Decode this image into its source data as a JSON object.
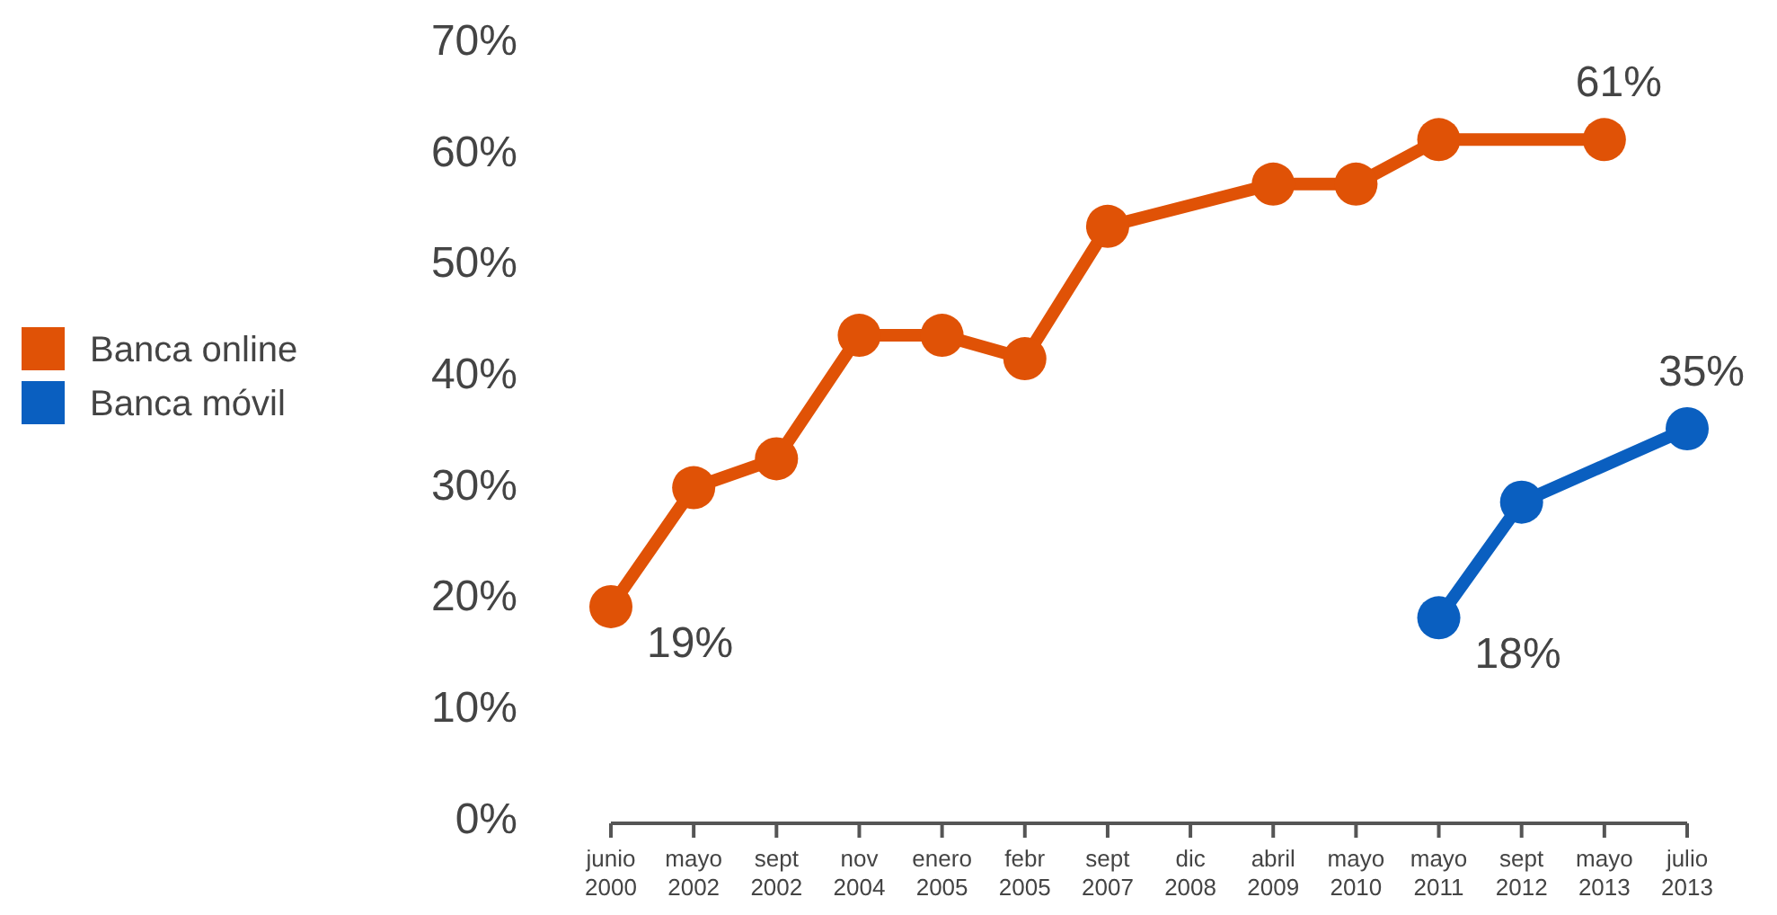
{
  "chart_data": {
    "type": "line",
    "categories": [
      "junio\n2000",
      "mayo\n2002",
      "sept\n2002",
      "nov\n2004",
      "enero\n2005",
      "febr\n2005",
      "sept\n2007",
      "dic\n2008",
      "abril\n2009",
      "mayo\n2010",
      "mayo\n2011",
      "sept\n2012",
      "mayo\n2013",
      "julio\n2013"
    ],
    "series": [
      {
        "name": "Banca online",
        "color": "#e05206",
        "values": [
          19,
          29.7,
          32.3,
          43.4,
          43.4,
          41.3,
          53.2,
          null,
          57,
          57,
          61,
          null,
          61,
          null
        ],
        "value_labels": [
          "19%",
          null,
          null,
          null,
          null,
          null,
          null,
          null,
          null,
          null,
          null,
          null,
          "61%",
          null
        ]
      },
      {
        "name": "Banca móvil",
        "color": "#0a5fc0",
        "values": [
          null,
          null,
          null,
          null,
          null,
          null,
          null,
          null,
          null,
          null,
          18,
          28.4,
          null,
          35
        ],
        "value_labels": [
          null,
          null,
          null,
          null,
          null,
          null,
          null,
          null,
          null,
          null,
          "18%",
          null,
          null,
          "35%"
        ]
      }
    ],
    "ylim": [
      0,
      70
    ],
    "yticks": [
      {
        "value": 0,
        "label": "0%"
      },
      {
        "value": 10,
        "label": "10%"
      },
      {
        "value": 20,
        "label": "20%"
      },
      {
        "value": 30,
        "label": "30%"
      },
      {
        "value": 40,
        "label": "40%"
      },
      {
        "value": 50,
        "label": "50%"
      },
      {
        "value": 60,
        "label": "60%"
      },
      {
        "value": 70,
        "label": "70%"
      }
    ],
    "grid": false,
    "legend": "left",
    "marker": "circle",
    "line_style": "solid"
  }
}
